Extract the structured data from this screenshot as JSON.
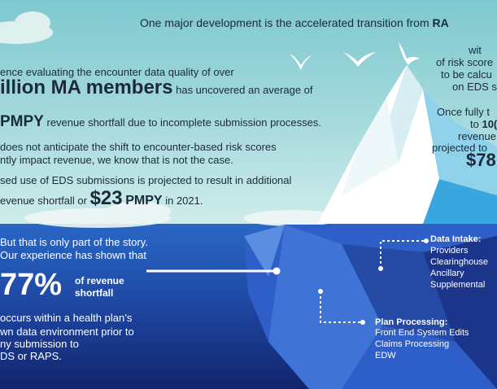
{
  "colors": {
    "sky_top": "#7ec9cf",
    "sea_top": "#2a67c5",
    "sea_bottom": "#13246e",
    "text_dark": "#1a2a3a",
    "text_light": "#ffffff"
  },
  "header_line": {
    "prefix": "One major development is the accelerated transition from ",
    "bold_tail": "RA"
  },
  "right_column": {
    "l1": "wit",
    "l2": "of risk score",
    "l3": "to be calcu",
    "l4": "on EDS s",
    "l5": "Once fully t",
    "l6_prefix": "to ",
    "l6_bold": "10(",
    "l7": "revenue",
    "l8": "projected to",
    "l9_bold": "$78"
  },
  "upper_left": {
    "l1": "ence evaluating the encounter data quality of over",
    "l2_big": "illion MA members",
    "l2_tail": "has uncovered an average of",
    "l3_big": "PMPY",
    "l3_tail": "revenue shortfall due to incomplete submission processes.",
    "l4": "does not anticipate the shift to encounter-based risk scores",
    "l5": "ntly impact revenue, we know that is not the case.",
    "l6": "sed use of EDS submissions is projected to result in additional",
    "l7_prefix": "evenue shortfall or ",
    "l7_big": "$23",
    "l7_mid": "PMPY",
    "l7_tail": "in 2021."
  },
  "lower_left": {
    "l1": "But that is only part of the story.",
    "l2": "Our experience has shown that",
    "stat_value": "77%",
    "stat_label_1": "of revenue",
    "stat_label_2": "shortfall",
    "l3": "occurs within a health plan’s",
    "l4": "wn data environment prior to",
    "l5": "ny submission to",
    "l6": "DS or RAPS."
  },
  "data_intake": {
    "title": "Data Intake:",
    "items": [
      "Providers",
      "Clearinghouse",
      "Ancillary",
      "Supplemental"
    ]
  },
  "plan_processing": {
    "title": "Plan Processing:",
    "items": [
      "Front End System Edits",
      "Claims Processing",
      "EDW"
    ]
  }
}
